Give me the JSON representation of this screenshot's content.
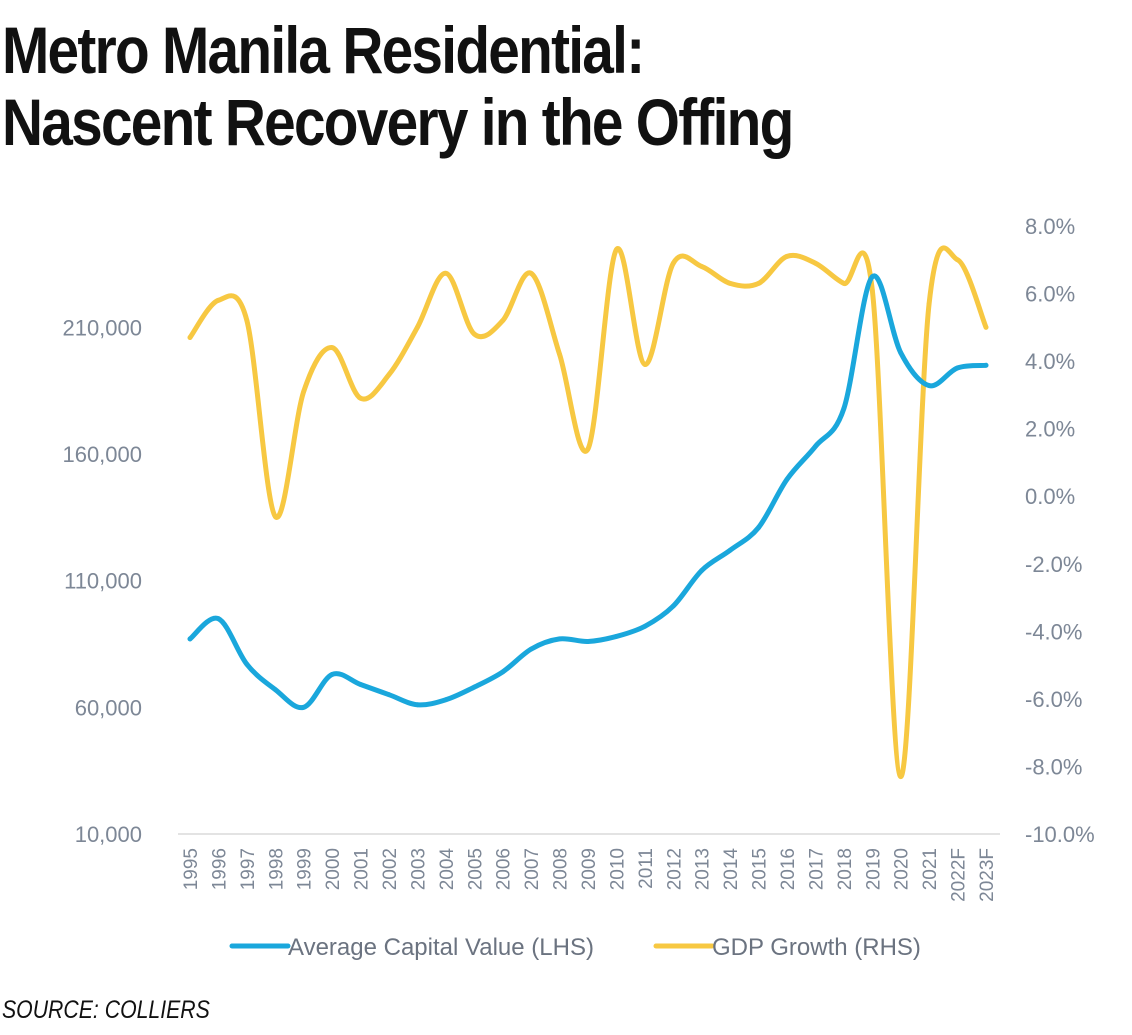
{
  "title_lines": [
    "Metro Manila Residential:",
    "Nascent Recovery in the Offing"
  ],
  "source": "SOURCE: COLLIERS",
  "colors": {
    "lhs_series": "#1aa7dc",
    "rhs_series": "#f7c842",
    "axis_text": "#7d8796",
    "baseline": "#e3e3e3"
  },
  "chart_data": {
    "type": "line",
    "categories": [
      "1995",
      "1996",
      "1997",
      "1998",
      "1999",
      "2000",
      "2001",
      "2002",
      "2003",
      "2004",
      "2005",
      "2006",
      "2007",
      "2008",
      "2009",
      "2010",
      "2011",
      "2012",
      "2013",
      "2014",
      "2015",
      "2016",
      "2017",
      "2018",
      "2019",
      "2020",
      "2021",
      "2022F",
      "2023F"
    ],
    "left_axis": {
      "ticks": [
        10000,
        60000,
        110000,
        160000,
        210000
      ],
      "tick_labels": [
        "10,000",
        "60,000",
        "110,000",
        "160,000",
        "210,000"
      ],
      "range": [
        10000,
        250000
      ]
    },
    "right_axis": {
      "ticks": [
        -10,
        -8,
        -6,
        -4,
        -2,
        0,
        2,
        4,
        6,
        8
      ],
      "tick_labels": [
        "-10.0%",
        "-8.0%",
        "-6.0%",
        "-4.0%",
        "-2.0%",
        "0.0%",
        "2.0%",
        "4.0%",
        "6.0%",
        "8.0%"
      ],
      "range": [
        -10,
        8
      ]
    },
    "series": [
      {
        "name": "Average Capital Value (LHS)",
        "axis": "left",
        "color": "#1aa7dc",
        "values": [
          87000,
          95000,
          77000,
          67000,
          60000,
          73000,
          69000,
          65000,
          61000,
          63000,
          68000,
          74000,
          83000,
          87000,
          86000,
          88000,
          92000,
          100000,
          114000,
          122000,
          131000,
          150000,
          163000,
          178000,
          230000,
          200000,
          187000,
          194000,
          195000
        ]
      },
      {
        "name": "GDP Growth (RHS)",
        "axis": "right",
        "color": "#f7c842",
        "values": [
          4.7,
          5.8,
          5.2,
          -0.6,
          3.1,
          4.4,
          2.9,
          3.6,
          5.0,
          6.6,
          4.8,
          5.2,
          6.6,
          4.2,
          1.4,
          7.3,
          3.9,
          6.9,
          6.8,
          6.3,
          6.3,
          7.1,
          6.9,
          6.3,
          6.1,
          -8.3,
          5.7,
          7.0,
          5.0
        ]
      }
    ],
    "legend_position": "bottom",
    "grid": false
  }
}
